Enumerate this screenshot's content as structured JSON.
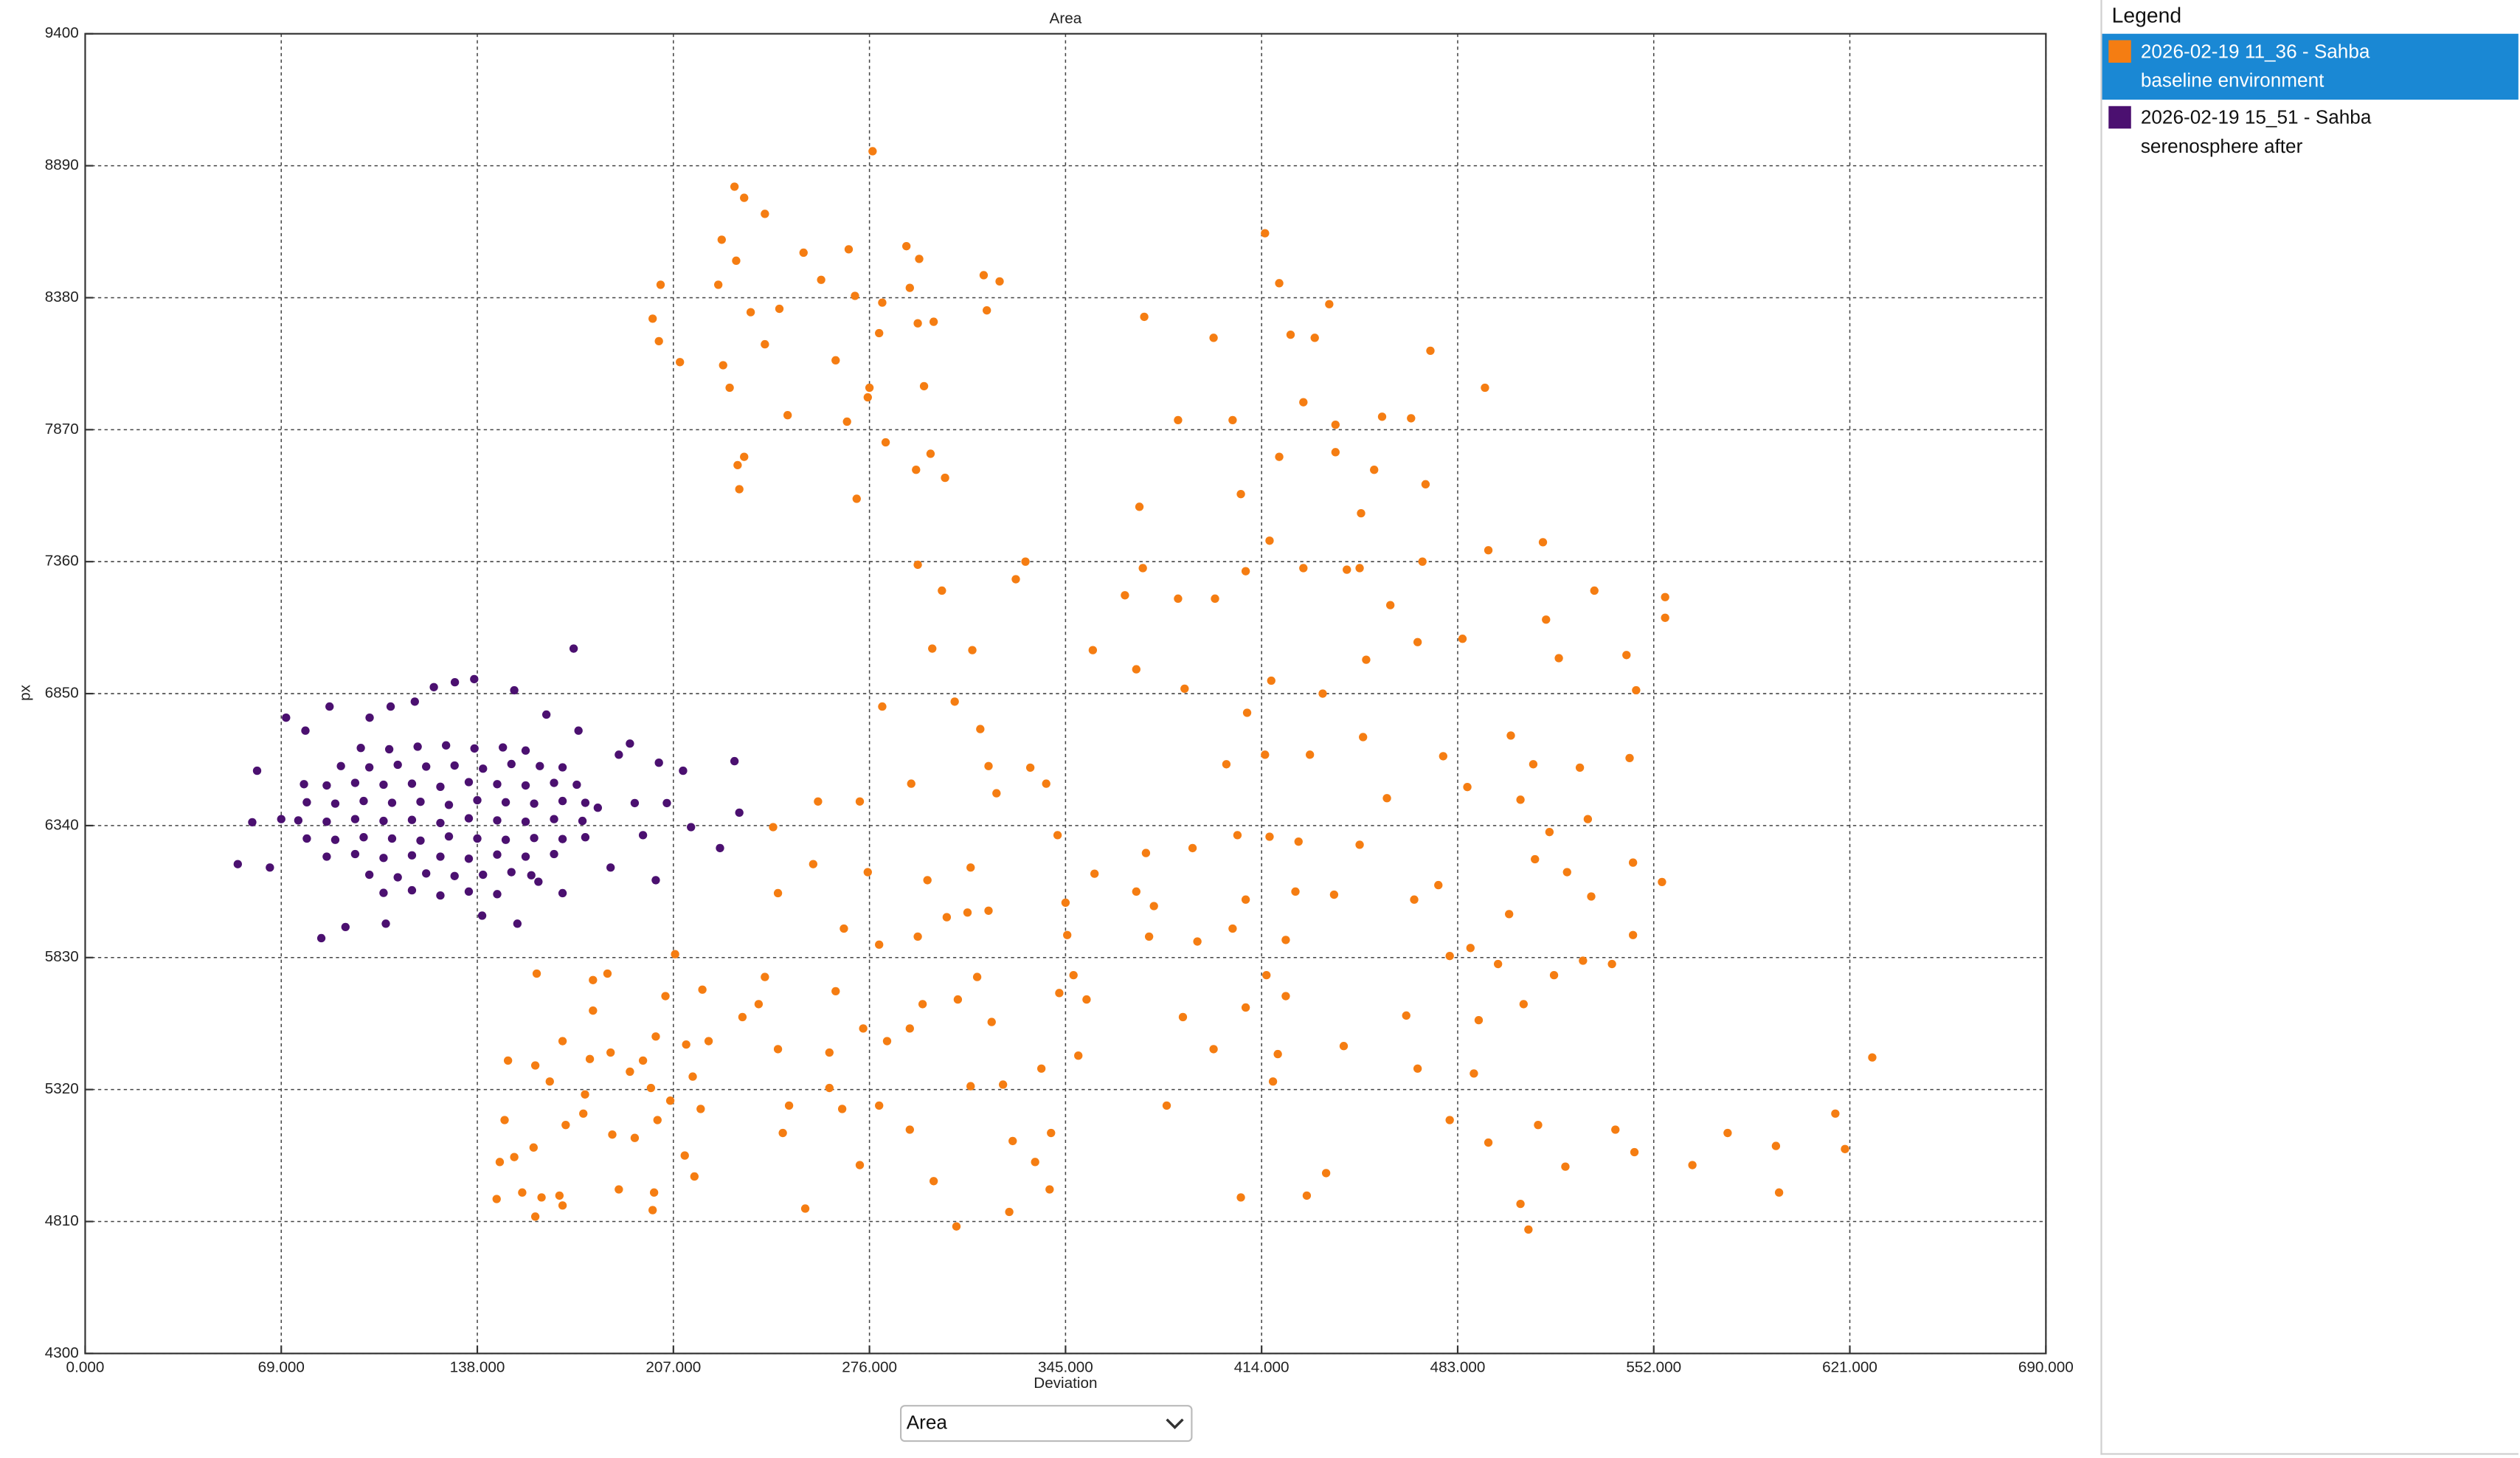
{
  "chart_data": {
    "type": "scatter",
    "title": "Area",
    "x_label": "Deviation",
    "y_label": "px",
    "xlim": [
      0,
      690
    ],
    "ylim": [
      4300,
      9400
    ],
    "xticks": [
      {
        "value": 0,
        "label": "0.000"
      },
      {
        "value": 69,
        "label": "69.000"
      },
      {
        "value": 138,
        "label": "138.000"
      },
      {
        "value": 207,
        "label": "207.000"
      },
      {
        "value": 276,
        "label": "276.000"
      },
      {
        "value": 345,
        "label": "345.000"
      },
      {
        "value": 414,
        "label": "414.000"
      },
      {
        "value": 483,
        "label": "483.000"
      },
      {
        "value": 552,
        "label": "552.000"
      },
      {
        "value": 621,
        "label": "621.000"
      },
      {
        "value": 690,
        "label": "690.000"
      }
    ],
    "yticks": [
      4300,
      4810,
      5320,
      5830,
      6340,
      6850,
      7360,
      7870,
      8380,
      8890,
      9400
    ],
    "grid": true,
    "legend": "right",
    "legend_title": "Legend",
    "legend_selected": 0,
    "series": [
      {
        "name": "2026-02-19 11_36 - Sahba baseline environment",
        "color": "#f57d12",
        "x": [
          277.1,
          228.5,
          231.9,
          239.2,
          224.0,
          229.1,
          252.8,
          268.7,
          289.0,
          293.5,
          259.0,
          270.9,
          290.2,
          222.8,
          234.2,
          244.3,
          202.5,
          199.7,
          280.5,
          293.0,
          298.6,
          279.4,
          201.9,
          239.2,
          209.3,
          224.5,
          226.8,
          264.1,
          276.0,
          295.2,
          275.4,
          247.2,
          268.1,
          229.6,
          231.9,
          281.7,
          297.5,
          302.6,
          292.4,
          230.2,
          271.5,
          316.2,
          321.8,
          317.3,
          372.7,
          397.1,
          415.2,
          420.2,
          424.2,
          432.7,
          437.8,
          473.4,
          492.6,
          384.6,
          403.8,
          428.7,
          440.0,
          456.4,
          466.6,
          420.2,
          440.0,
          453.6,
          449.0,
          406.7,
          371.0,
          471.7,
          416.8,
          408.4,
          428.7,
          444.0,
          448.5,
          397.6,
          384.6,
          365.9,
          372.2,
          327.5,
          330.9,
          293.0,
          301.5,
          298.1,
          312.2,
          354.6,
          369.9,
          386.9,
          408.9,
          417.4,
          435.5,
          450.8,
          459.3,
          470.6,
          468.9,
          484.7,
          493.8,
          513.0,
          514.1,
          518.6,
          531.1,
          542.4,
          545.8,
          556.0,
          556.0,
          477.9,
          486.4,
          501.7,
          509.6,
          526.0,
          543.5,
          554.9,
          544.7,
          544.7,
          528.8,
          515.3,
          505.1,
          510.2,
          521.5,
          530.0,
          537.3,
          527.1,
          516.9,
          506.2,
          490.4,
          487.5,
          480.2,
          476.2,
          467.7,
          464.9,
          468.9,
          480.2,
          493.8,
          505.1,
          507.9,
          511.3,
          520.9,
          538.5,
          545.2,
          565.6,
          578.0,
          595.0,
          596.1,
          615.9,
          619.3,
          628.9,
          401.6,
          415.2,
          431.0,
          449.7,
          458.1,
          416.8,
          427.0,
          405.5,
          389.7,
          373.3,
          376.1,
          408.4,
          425.9,
          439.5,
          448.5,
          422.5,
          403.8,
          391.4,
          374.4,
          369.9,
          355.2,
          342.2,
          338.2,
          332.6,
          317.9,
          320.7,
          315.0,
          306.0,
          280.5,
          290.7,
          272.6,
          257.9,
          242.1,
          243.8,
          256.2,
          267.0,
          275.4,
          279.4,
          293.0,
          303.2,
          310.5,
          317.9,
          311.6,
          296.4,
          345.0,
          345.6,
          347.8,
          342.8,
          352.4,
          349.5,
          336.5,
          323.0,
          319.0,
          313.9,
          307.1,
          294.7,
          290.2,
          282.2,
          273.8,
          264.1,
          261.9,
          261.9,
          266.4,
          279.4,
          290.2,
          311.6,
          326.4,
          334.3,
          339.9,
          339.4,
          325.2,
          306.6,
          298.6,
          272.6,
          253.4,
          245.5,
          247.7,
          239.2,
          237.0,
          243.8,
          231.3,
          219.4,
          217.2,
          207.6,
          204.2,
          200.8,
          196.3,
          199.1,
          201.4,
          193.4,
          187.8,
          200.2,
          199.7,
          185.5,
          175.9,
          177.6,
          168.0,
          163.5,
          169.1,
          166.9,
          168.0,
          157.8,
          153.8,
          151.0,
          145.9,
          147.6,
          144.8,
          148.8,
          158.4,
          158.9,
          178.7,
          183.8,
          178.7,
          184.9,
          191.7,
          211.5,
          213.8,
          216.6,
          211.0,
          214.4,
          205.9,
          175.3,
          160.6,
          158.4,
          415.7,
          422.5,
          419.7,
          418.0,
          408.4,
          386.3,
          397.1,
          380.6,
          406.7,
          429.9,
          436.7,
          442.9,
          488.7,
          497.2,
          501.1
        ],
        "values": [
          8946,
          8809,
          8766,
          8704,
          8604,
          8523,
          8554,
          8567,
          8579,
          8530,
          8449,
          8387,
          8418,
          8430,
          8324,
          8337,
          8430,
          8299,
          8361,
          8281,
          8287,
          8243,
          8212,
          8200,
          8131,
          8119,
          8032,
          8138,
          8032,
          8038,
          7995,
          7926,
          7901,
          7733,
          7765,
          7821,
          7777,
          7684,
          7715,
          7640,
          7603,
          8467,
          8443,
          8331,
          8306,
          8225,
          8629,
          8436,
          8237,
          8225,
          8355,
          8175,
          8032,
          7907,
          7907,
          7976,
          7889,
          7920,
          7914,
          7765,
          7783,
          7715,
          7547,
          7621,
          7572,
          7659,
          7441,
          7323,
          7335,
          7329,
          7335,
          7217,
          7217,
          7230,
          7335,
          7292,
          7360,
          7348,
          7248,
          7024,
          7018,
          7018,
          6944,
          6869,
          6776,
          6900,
          6850,
          6981,
          7192,
          7360,
          7049,
          7062,
          7404,
          7435,
          7136,
          6987,
          7248,
          6999,
          6863,
          7223,
          7143,
          6608,
          6489,
          6688,
          6577,
          6564,
          6601,
          6122,
          6197,
          5917,
          6365,
          6315,
          6440,
          6210,
          6160,
          6066,
          5805,
          5818,
          5762,
          5650,
          5588,
          5867,
          5836,
          6110,
          6054,
          5606,
          5401,
          5202,
          5115,
          4878,
          4779,
          5183,
          5022,
          5165,
          5078,
          5028,
          5152,
          5102,
          4922,
          5227,
          5090,
          5444,
          6577,
          6614,
          6614,
          6682,
          6446,
          6297,
          6278,
          6303,
          6253,
          6234,
          6029,
          6054,
          6085,
          6073,
          6266,
          5898,
          5942,
          5892,
          5911,
          6085,
          6154,
          6303,
          6502,
          6564,
          6570,
          6465,
          6713,
          6819,
          6800,
          6502,
          6433,
          6433,
          6334,
          6079,
          6191,
          5942,
          6160,
          5880,
          5911,
          5986,
          6004,
          6011,
          6178,
          6129,
          6042,
          5917,
          5762,
          5693,
          5668,
          5451,
          5401,
          5339,
          5581,
          5755,
          5668,
          5650,
          5556,
          5507,
          5556,
          5700,
          5463,
          5326,
          5245,
          5258,
          5165,
          5333,
          5121,
          5040,
          5152,
          4934,
          4847,
          4791,
          4966,
          5028,
          4860,
          5152,
          5258,
          5755,
          5650,
          5476,
          5600,
          5507,
          5706,
          5843,
          5681,
          5525,
          5432,
          5326,
          5202,
          5133,
          4934,
          4922,
          4854,
          5146,
          5301,
          5438,
          5507,
          5351,
          5183,
          4910,
          4872,
          5096,
          4922,
          5059,
          5040,
          5202,
          4897,
          5432,
          5413,
          5768,
          5743,
          5768,
          5625,
          5463,
          5389,
          5494,
          5370,
          5245,
          5065,
          4984,
          5277,
          5227,
          4903,
          4829,
          5762,
          5681,
          5457,
          5351,
          5637,
          5600,
          5476,
          5258,
          4903,
          4910,
          4997,
          5488,
          5382,
          5805,
          5998
        ]
      },
      {
        "name": "2026-02-19 15_51 - Sahba serenosphere after",
        "color": "#4b1070",
        "x": [
          105,
          115,
          125,
          135,
          145,
          100,
          110,
          120,
          130,
          140,
          150,
          157,
          85,
          95,
          105,
          115,
          125,
          135,
          145,
          155,
          165,
          78,
          88,
          98,
          108,
          118,
          128,
          138,
          148,
          158,
          168,
          176,
          75,
          85,
          95,
          105,
          115,
          125,
          135,
          145,
          155,
          165,
          175,
          78,
          88,
          98,
          108,
          118,
          128,
          138,
          148,
          158,
          168,
          176,
          77,
          85,
          95,
          105,
          115,
          125,
          135,
          145,
          155,
          165,
          173,
          90,
          100,
          110,
          120,
          130,
          140,
          150,
          160,
          168,
          97,
          107,
          117,
          127,
          137,
          147,
          155,
          53.7,
          58.8,
          60.5,
          70.7,
          83.1,
          91.6,
          107.5,
          116.0,
          122.7,
          130.1,
          136.9,
          151.0,
          171.9,
          168.0,
          159.5,
          191.7,
          201.9,
          210.4,
          228.5,
          230.2,
          223.4,
          200.8,
          184.9,
          196.3,
          180.4,
          187.8,
          77.5,
          69.0,
          65.0,
          105.8,
          139.7,
          152.1,
          100.1,
          86.0,
          173.6,
          162.3,
          193.4,
          204.7,
          213.2
        ],
        "values": [
          6080,
          6090,
          6070,
          6085,
          6075,
          6150,
          6140,
          6155,
          6145,
          6150,
          6160,
          6148,
          6220,
          6230,
          6215,
          6225,
          6220,
          6212,
          6228,
          6220,
          6230,
          6290,
          6285,
          6295,
          6290,
          6282,
          6298,
          6290,
          6285,
          6292,
          6288,
          6295,
          6360,
          6355,
          6365,
          6358,
          6362,
          6350,
          6368,
          6360,
          6355,
          6365,
          6358,
          6430,
          6425,
          6435,
          6428,
          6432,
          6420,
          6438,
          6430,
          6425,
          6435,
          6428,
          6500,
          6495,
          6505,
          6498,
          6502,
          6490,
          6508,
          6500,
          6495,
          6505,
          6498,
          6570,
          6565,
          6575,
          6568,
          6572,
          6560,
          6578,
          6570,
          6565,
          6640,
          6635,
          6645,
          6650,
          6638,
          6642,
          6630,
          6191,
          6353,
          6552,
          6757,
          5905,
          5948,
          6800,
          6819,
          6875,
          6894,
          6906,
          6863,
          7024,
          6079,
          6123,
          6657,
          6583,
          6552,
          6589,
          6390,
          6253,
          6129,
          6178,
          6303,
          6409,
          6614,
          6707,
          6365,
          6178,
          5961,
          5992,
          5961,
          6757,
          6800,
          6707,
          6769,
          6427,
          6427,
          6334
        ]
      }
    ]
  },
  "controls": {
    "metric_select": "Area"
  }
}
